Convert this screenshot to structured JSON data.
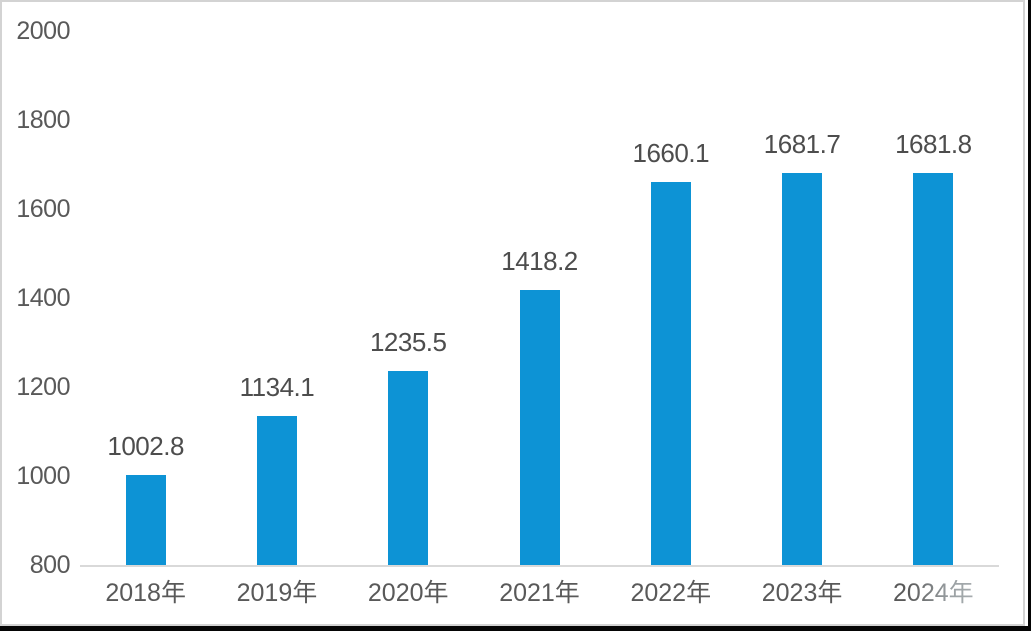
{
  "chart_data": {
    "type": "bar",
    "title": "",
    "xlabel": "",
    "ylabel": "",
    "categories": [
      "2018年",
      "2019年",
      "2020年",
      "2021年",
      "2022年",
      "2023年",
      "2024年"
    ],
    "values": [
      1002.8,
      1134.1,
      1235.5,
      1418.2,
      1660.1,
      1681.7,
      1681.8
    ],
    "data_labels": [
      "1002.8",
      "1134.1",
      "1235.5",
      "1418.2",
      "1660.1",
      "1681.7",
      "1681.8"
    ],
    "yticks": [
      800,
      1000,
      1200,
      1400,
      1600,
      1800,
      2000
    ],
    "ylim": [
      800,
      2000
    ],
    "grid": false,
    "legend": "none",
    "bar_color": "#0d93d5",
    "axis_line_color": "#d9d9d9",
    "tick_label_color": "#595959",
    "data_label_color": "#4d4d4d",
    "last_category_faded": true
  }
}
